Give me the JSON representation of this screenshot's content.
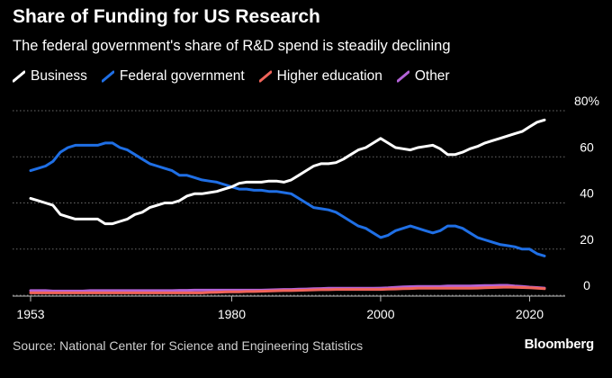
{
  "title": "Share of Funding for US Research",
  "subtitle": "The federal government's share of R&D spend is steadily declining",
  "source": "Source: National Center for Science and Engineering Statistics",
  "brand": "Bloomberg",
  "colors": {
    "background": "#000000",
    "business": "#ffffff",
    "federal": "#1f6fe5",
    "higher_education": "#f0645a",
    "other": "#b463d8",
    "gridline": "#6b6b6b"
  },
  "chart_data": {
    "type": "line",
    "title": "Share of Funding for US Research",
    "subtitle": "The federal government's share of R&D spend is steadily declining",
    "xlabel": "",
    "ylabel": "",
    "unit": "%",
    "xlim": [
      1953,
      2022
    ],
    "ylim": [
      0,
      80
    ],
    "x_ticks": [
      1953,
      1980,
      2000,
      2020
    ],
    "x_tick_labels": [
      "1953",
      "1980",
      "2000",
      "2020"
    ],
    "y_ticks": [
      0,
      20,
      40,
      60,
      80
    ],
    "y_tick_labels": [
      "0",
      "20",
      "40",
      "60",
      "80%"
    ],
    "grid": true,
    "legend_position": "top-left",
    "x": [
      1953,
      1954,
      1955,
      1956,
      1957,
      1958,
      1959,
      1960,
      1961,
      1962,
      1963,
      1964,
      1965,
      1966,
      1967,
      1968,
      1969,
      1970,
      1971,
      1972,
      1973,
      1974,
      1975,
      1976,
      1977,
      1978,
      1979,
      1980,
      1981,
      1982,
      1983,
      1984,
      1985,
      1986,
      1987,
      1988,
      1989,
      1990,
      1991,
      1992,
      1993,
      1994,
      1995,
      1996,
      1997,
      1998,
      1999,
      2000,
      2001,
      2002,
      2003,
      2004,
      2005,
      2006,
      2007,
      2008,
      2009,
      2010,
      2011,
      2012,
      2013,
      2014,
      2015,
      2016,
      2017,
      2018,
      2019,
      2020,
      2021,
      2022
    ],
    "series": [
      {
        "name": "Business",
        "color": "#ffffff",
        "values": [
          42,
          41,
          40,
          39,
          35,
          34,
          33,
          33,
          33,
          33,
          31,
          31,
          32,
          33,
          35,
          36,
          38,
          39,
          40,
          40,
          41,
          43,
          44,
          44,
          44.5,
          45,
          46,
          47,
          48.5,
          49,
          49,
          49,
          49.5,
          49.5,
          49,
          50,
          52,
          54,
          56,
          57,
          57,
          57.5,
          59,
          61,
          63,
          64,
          66,
          68,
          66,
          64,
          63.5,
          63,
          64,
          64.5,
          65,
          63.5,
          61,
          61,
          62,
          63.5,
          64.5,
          66,
          67,
          68,
          69,
          70,
          71,
          73,
          75,
          76
        ]
      },
      {
        "name": "Federal government",
        "color": "#1f6fe5",
        "values": [
          54,
          55,
          56,
          58,
          62,
          64,
          65,
          65,
          65,
          65,
          66,
          66,
          64,
          63,
          61,
          59,
          57,
          56,
          55,
          54,
          52,
          52,
          51,
          50,
          49.5,
          49,
          48,
          47,
          46,
          46,
          45.5,
          45.5,
          45,
          45,
          44.5,
          44,
          42,
          40,
          38,
          37.5,
          37,
          36,
          34,
          32,
          30,
          29,
          27,
          25,
          26,
          28,
          29,
          30,
          29,
          28,
          27,
          28,
          30,
          30,
          29,
          27,
          25,
          24,
          23,
          22,
          21.5,
          21,
          20,
          20,
          18,
          17
        ]
      },
      {
        "name": "Higher education",
        "color": "#f0645a",
        "values": [
          1,
          1,
          1,
          1,
          1,
          1,
          1,
          1,
          1,
          1,
          1,
          1,
          1,
          1,
          1,
          1,
          1,
          1,
          1,
          1,
          1,
          1,
          1,
          1,
          1.2,
          1.3,
          1.4,
          1.5,
          1.5,
          1.6,
          1.6,
          1.7,
          1.8,
          1.9,
          2,
          2,
          2.1,
          2.2,
          2.3,
          2.4,
          2.4,
          2.5,
          2.5,
          2.5,
          2.5,
          2.5,
          2.5,
          2.5,
          2.6,
          2.7,
          2.8,
          2.9,
          3,
          3,
          3,
          3,
          3,
          3,
          3,
          3,
          3.1,
          3.2,
          3.3,
          3.4,
          3.5,
          3.4,
          3.3,
          3.2,
          3,
          2.8
        ]
      },
      {
        "name": "Other",
        "color": "#b463d8",
        "values": [
          2,
          2,
          2,
          1.8,
          1.8,
          1.8,
          1.8,
          1.8,
          2,
          2,
          2,
          2,
          2,
          2,
          2,
          2,
          2,
          2,
          2,
          2,
          2.1,
          2.1,
          2.2,
          2.2,
          2.2,
          2.2,
          2.2,
          2.2,
          2.2,
          2.2,
          2.2,
          2.2,
          2.3,
          2.4,
          2.5,
          2.5,
          2.6,
          2.7,
          2.8,
          2.9,
          3,
          3,
          3,
          3,
          3,
          3,
          3,
          3.1,
          3.2,
          3.4,
          3.6,
          3.7,
          3.8,
          3.8,
          3.8,
          3.8,
          4,
          4,
          4,
          4,
          4.1,
          4.2,
          4.2,
          4.3,
          4.3,
          4,
          3.8,
          3.5,
          3.3,
          3.1
        ]
      }
    ]
  }
}
